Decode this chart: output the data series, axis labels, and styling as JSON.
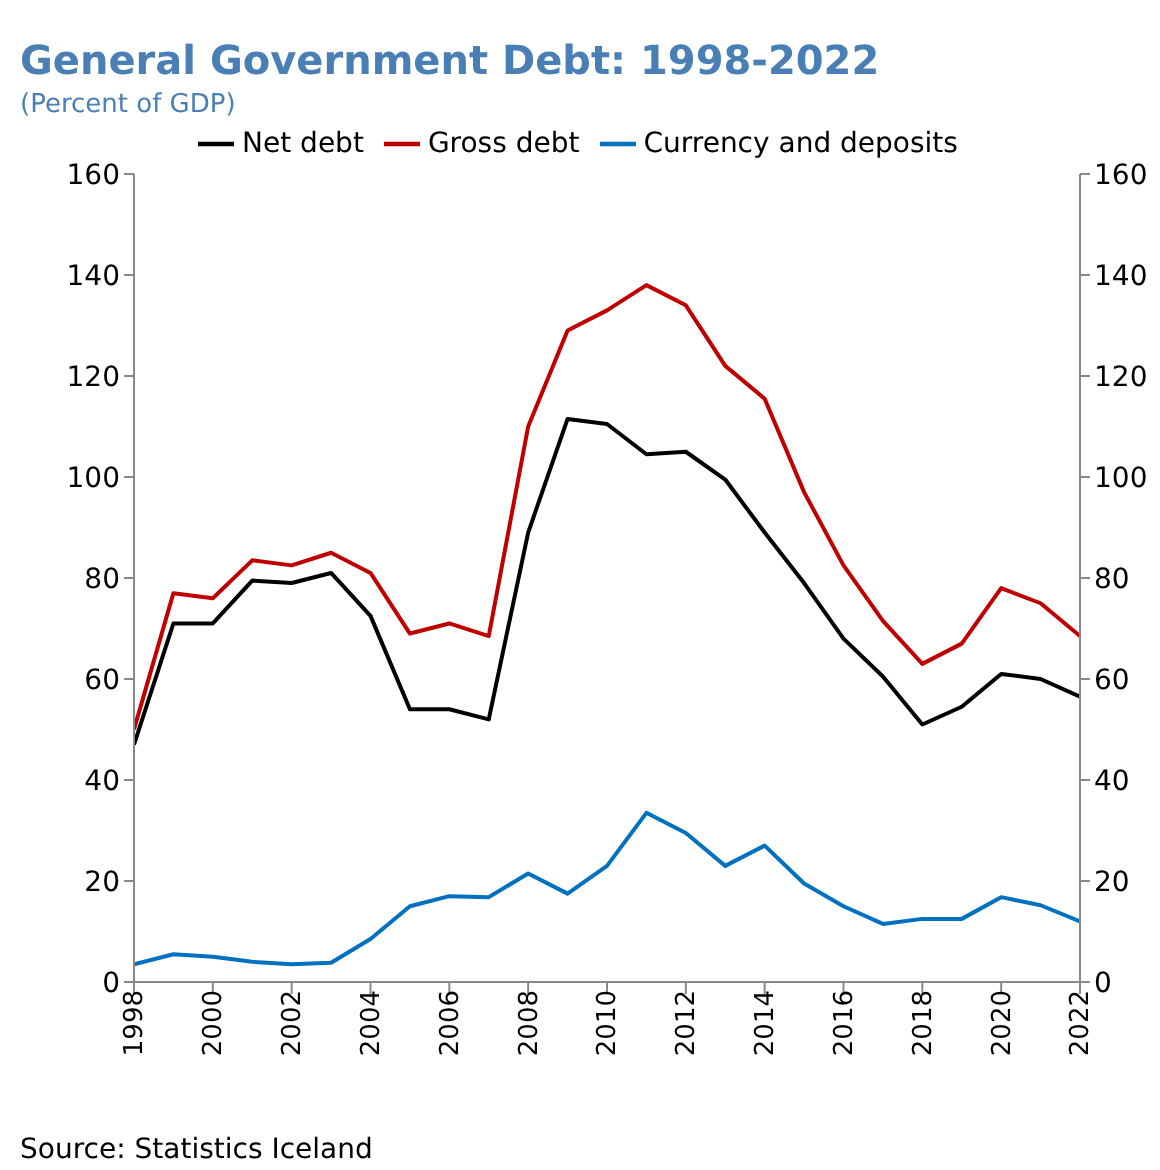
{
  "chart_data": {
    "type": "line",
    "title": "General Government Debt: 1998-2022",
    "subtitle": "(Percent of GDP)",
    "annotations": [
      "Source: Statistics Iceland"
    ],
    "x": [
      1998,
      1999,
      2000,
      2001,
      2002,
      2003,
      2004,
      2005,
      2006,
      2007,
      2008,
      2009,
      2010,
      2011,
      2012,
      2013,
      2014,
      2015,
      2016,
      2017,
      2018,
      2019,
      2020,
      2021,
      2022
    ],
    "series": [
      {
        "name": "Net debt",
        "color": "#000000",
        "values": [
          47,
          71,
          71,
          79.5,
          79,
          81,
          72.5,
          54,
          54,
          52,
          89,
          111.5,
          110.5,
          104.5,
          105,
          99.5,
          89,
          79,
          68,
          60.5,
          51,
          54.5,
          61,
          60,
          56.5
        ]
      },
      {
        "name": "Gross debt",
        "color": "#c00000",
        "values": [
          50,
          77,
          76,
          83.5,
          82.5,
          85,
          81,
          69,
          71,
          68.5,
          110,
          129,
          133,
          138,
          134,
          122,
          115.5,
          97,
          82.5,
          71.5,
          63,
          67,
          78,
          75,
          68.5
        ]
      },
      {
        "name": "Currency and deposits",
        "color": "#0070c0",
        "values": [
          3.5,
          5.5,
          5,
          4,
          3.5,
          3.8,
          8.5,
          15,
          17,
          16.8,
          21.5,
          17.5,
          23,
          33.5,
          29.5,
          23,
          27,
          19.5,
          15,
          11.5,
          12.5,
          12.5,
          16.8,
          15.2,
          12
        ]
      }
    ],
    "xlim": [
      1998,
      2022
    ],
    "xticks": [
      1998,
      2000,
      2002,
      2004,
      2006,
      2008,
      2010,
      2012,
      2014,
      2016,
      2018,
      2020,
      2022
    ],
    "ylim": [
      0,
      160
    ],
    "yticks": [
      0,
      20,
      40,
      60,
      80,
      100,
      120,
      140,
      160
    ],
    "y2lim": [
      0,
      160
    ],
    "y2ticks": [
      0,
      20,
      40,
      60,
      80,
      100,
      120,
      140,
      160
    ],
    "grid": false,
    "legend": "top",
    "marker": "none",
    "line_style": "solid"
  }
}
